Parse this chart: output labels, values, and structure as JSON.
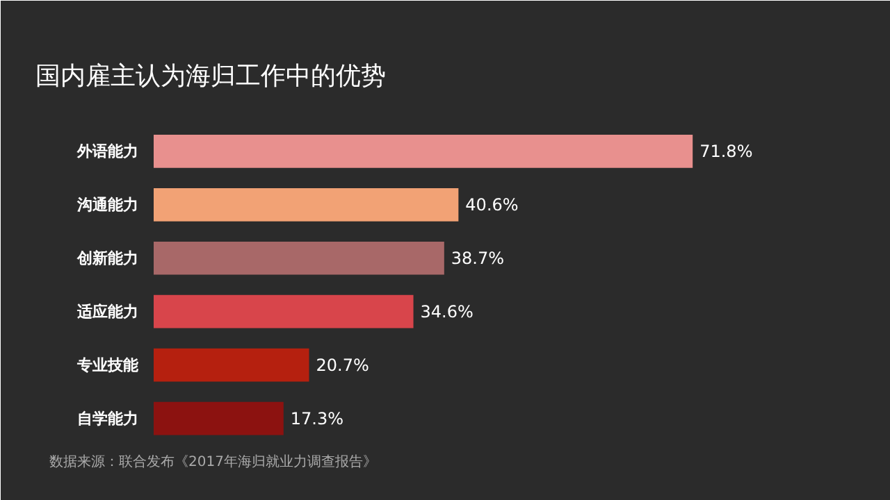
{
  "chart_data": {
    "type": "bar",
    "orientation": "horizontal",
    "title": "国内雇主认为海归工作中的优势",
    "categories": [
      "外语能力",
      "沟通能力",
      "创新能力",
      "适应能力",
      "专业技能",
      "自学能力"
    ],
    "values": [
      71.8,
      40.6,
      38.7,
      34.6,
      20.7,
      17.3
    ],
    "value_labels": [
      "71.8%",
      "40.6%",
      "38.7%",
      "34.6%",
      "20.7%",
      "17.3%"
    ],
    "colors": [
      "#e8908e",
      "#f2a275",
      "#a86868",
      "#d8454b",
      "#b5200f",
      "#8c1210"
    ],
    "annotations": [
      "数据来源：联合发布《2017年海归就业力调查报告》"
    ]
  }
}
